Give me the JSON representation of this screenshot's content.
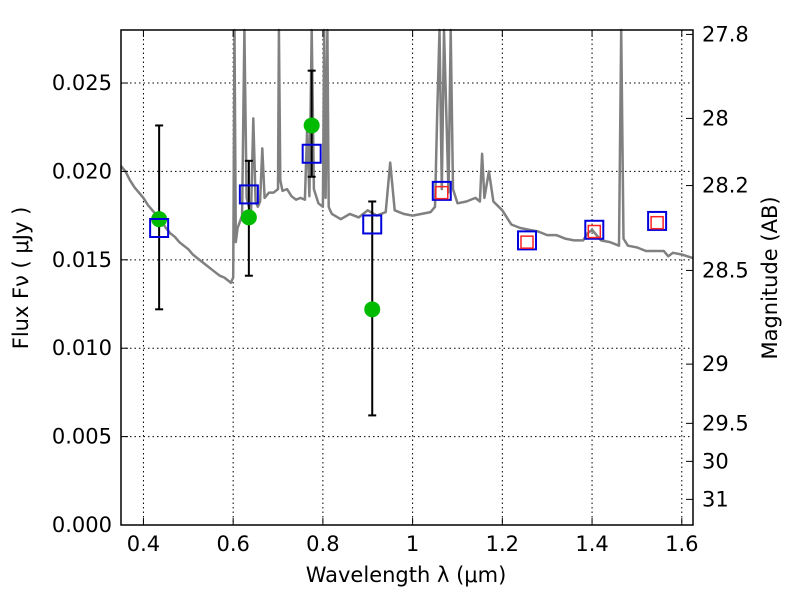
{
  "chart_data": {
    "type": "scatter",
    "xlabel": "Wavelength  λ (μm)",
    "ylabel": "Flux  Fν  ( μJy )",
    "ylabel_right": "Magnitude (AB)",
    "xlim": [
      0.35,
      1.625
    ],
    "ylim": [
      0.0,
      0.028
    ],
    "grid": true,
    "x_ticks": [
      0.4,
      0.6,
      0.8,
      1.0,
      1.2,
      1.4,
      1.6
    ],
    "x_tick_labels": [
      "0.4",
      "0.6",
      "0.8",
      "1",
      "1.2",
      "1.4",
      "1.6"
    ],
    "y_ticks": [
      0.0,
      0.005,
      0.01,
      0.015,
      0.02,
      0.025
    ],
    "y_tick_labels": [
      "0.000",
      "0.005",
      "0.010",
      "0.015",
      "0.020",
      "0.025"
    ],
    "right_ticks": [
      {
        "flux": 0.02775,
        "label": "27.8"
      },
      {
        "flux": 0.023,
        "label": "28"
      },
      {
        "flux": 0.0192,
        "label": "28.2"
      },
      {
        "flux": 0.0144,
        "label": "28.5"
      },
      {
        "flux": 0.0091,
        "label": "29"
      },
      {
        "flux": 0.00575,
        "label": "29.5"
      },
      {
        "flux": 0.0036,
        "label": "30"
      },
      {
        "flux": 0.00145,
        "label": "31"
      }
    ],
    "series": [
      {
        "style": "line",
        "color": "#808080",
        "x": [
          0.35,
          0.36,
          0.37,
          0.38,
          0.39,
          0.4,
          0.41,
          0.42,
          0.43,
          0.44,
          0.45,
          0.46,
          0.47,
          0.48,
          0.49,
          0.5,
          0.51,
          0.52,
          0.53,
          0.54,
          0.55,
          0.56,
          0.57,
          0.58,
          0.59,
          0.595,
          0.6,
          0.603,
          0.606,
          0.61,
          0.62,
          0.625,
          0.63,
          0.635,
          0.64,
          0.645,
          0.65,
          0.655,
          0.66,
          0.665,
          0.67,
          0.68,
          0.69,
          0.7,
          0.702,
          0.705,
          0.71,
          0.72,
          0.73,
          0.74,
          0.75,
          0.76,
          0.765,
          0.77,
          0.775,
          0.78,
          0.79,
          0.8,
          0.803,
          0.806,
          0.81,
          0.813,
          0.816,
          0.82,
          0.84,
          0.86,
          0.88,
          0.9,
          0.92,
          0.94,
          0.95,
          0.96,
          0.98,
          1.0,
          1.02,
          1.04,
          1.05,
          1.055,
          1.06,
          1.065,
          1.07,
          1.08,
          1.085,
          1.09,
          1.1,
          1.12,
          1.14,
          1.15,
          1.155,
          1.16,
          1.17,
          1.18,
          1.2,
          1.22,
          1.24,
          1.26,
          1.28,
          1.3,
          1.32,
          1.34,
          1.36,
          1.38,
          1.39,
          1.4,
          1.41,
          1.42,
          1.44,
          1.46,
          1.465,
          1.47,
          1.48,
          1.5,
          1.52,
          1.54,
          1.56,
          1.57,
          1.58,
          1.6,
          1.625
        ],
        "y": [
          0.0203,
          0.02,
          0.0195,
          0.0191,
          0.0188,
          0.0185,
          0.0181,
          0.0178,
          0.0175,
          0.0172,
          0.0168,
          0.0165,
          0.0163,
          0.016,
          0.0158,
          0.0156,
          0.0153,
          0.0151,
          0.0149,
          0.0147,
          0.0145,
          0.0143,
          0.0141,
          0.014,
          0.0138,
          0.0137,
          0.014,
          0.0285,
          0.016,
          0.0168,
          0.0175,
          0.0285,
          0.0185,
          0.018,
          0.0178,
          0.023,
          0.0183,
          0.018,
          0.0183,
          0.0213,
          0.0185,
          0.0188,
          0.0188,
          0.019,
          0.0285,
          0.0195,
          0.0189,
          0.019,
          0.0186,
          0.0184,
          0.0185,
          0.0184,
          0.0225,
          0.0186,
          0.0285,
          0.019,
          0.0182,
          0.018,
          0.0285,
          0.0185,
          0.0285,
          0.018,
          0.0178,
          0.0176,
          0.0173,
          0.0176,
          0.0174,
          0.0178,
          0.0175,
          0.0177,
          0.0205,
          0.0178,
          0.0176,
          0.0175,
          0.0176,
          0.0177,
          0.018,
          0.0235,
          0.0285,
          0.019,
          0.0285,
          0.0188,
          0.0285,
          0.019,
          0.0182,
          0.0183,
          0.0185,
          0.0183,
          0.021,
          0.0185,
          0.02,
          0.0183,
          0.0178,
          0.017,
          0.0168,
          0.0167,
          0.0166,
          0.0164,
          0.0164,
          0.0162,
          0.0161,
          0.0161,
          0.0165,
          0.0167,
          0.0164,
          0.0161,
          0.016,
          0.0158,
          0.0285,
          0.0162,
          0.0158,
          0.0157,
          0.0155,
          0.0155,
          0.0155,
          0.0152,
          0.0154,
          0.0153,
          0.0151
        ]
      },
      {
        "style": "errorbar",
        "color": "#000000",
        "points": [
          {
            "x": 0.435,
            "lo": 0.0122,
            "hi": 0.0226
          },
          {
            "x": 0.635,
            "lo": 0.0141,
            "hi": 0.0206
          },
          {
            "x": 0.775,
            "lo": 0.0197,
            "hi": 0.0257
          },
          {
            "x": 0.91,
            "lo": 0.0062,
            "hi": 0.0183
          }
        ]
      },
      {
        "style": "circle",
        "color": "#00bb00",
        "x": [
          0.435,
          0.635,
          0.775,
          0.91
        ],
        "y": [
          0.0173,
          0.0174,
          0.0226,
          0.0122
        ]
      },
      {
        "style": "open-square",
        "color": "#0000dd",
        "x": [
          0.435,
          0.635,
          0.775,
          0.91,
          1.065,
          1.255,
          1.405,
          1.545
        ],
        "y": [
          0.0168,
          0.0187,
          0.021,
          0.017,
          0.0189,
          0.0161,
          0.0167,
          0.0172
        ]
      },
      {
        "style": "open-square-small",
        "color": "#ff2222",
        "x": [
          1.065,
          1.255,
          1.405,
          1.545
        ],
        "y": [
          0.0188,
          0.016,
          0.0166,
          0.0171
        ]
      }
    ]
  }
}
